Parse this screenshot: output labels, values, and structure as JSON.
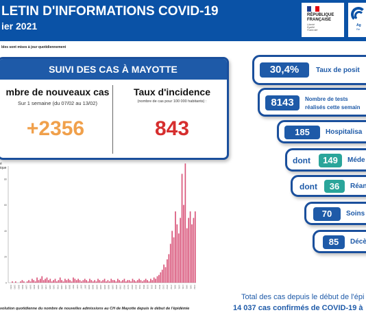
{
  "header": {
    "title": "LETIN D'INFORMATIONS COVID-19",
    "subtitle": "ier 2021",
    "logo_rf": [
      "RÉPUBLIQUE",
      "FRANÇAISE"
    ],
    "logo_motto": [
      "Liberté",
      "Égalité",
      "Fraternité"
    ],
    "logo2_lines": [
      "Ag",
      "Ré"
    ],
    "note": "bles sont mises à jour quotidiennement"
  },
  "suivi": {
    "title": "SUIVI DES CAS À MAYOTTE",
    "new_cases_title": "mbre de nouveaux cas",
    "new_cases_period": "Sur 1 semaine (du 07/02 au 13/02)",
    "new_cases_value": "+2356",
    "incidence_title": "Taux d'incidence",
    "incidence_sub": "(nombre de cas pour 100 000 habitants) :",
    "incidence_value": "843"
  },
  "indicators": {
    "positivity_value": "30,4%",
    "positivity_label": "Taux de posit",
    "tests_value": "8143",
    "tests_label1": "Nombre de tests",
    "tests_label2": "réalisés cette semain",
    "hosp_value": "185",
    "hosp_label": "Hospitalisa",
    "dont": "dont",
    "med_value": "149",
    "med_label": "Méde",
    "rea_value": "36",
    "rea_label": "Réani",
    "soins_value": "70",
    "soins_label": "Soins a",
    "deces_value": "85",
    "deces_label": "Décè"
  },
  "totals": {
    "line1": "Total des cas depuis le début de l'épi",
    "line2": "14 037 cas confirmés de COVID-19 à"
  },
  "chart_caption": "volution quotidienne du nombre de nouvelles admissions au CH de Mayotte depuis le début de l'épidémie",
  "colors": {
    "header": "#0a52a6",
    "accent": "#1e5aa8",
    "new_cases": "#f0a04b",
    "incidence": "#d62e2e",
    "bars": "#d9557a",
    "teal": "#2aa59a"
  },
  "chart_data": {
    "type": "bar",
    "title": "",
    "ylabel_fragment": [
      "é",
      "ique"
    ],
    "ylim": [
      0,
      90
    ],
    "values": [
      0,
      0,
      1,
      0,
      1,
      0,
      0,
      1,
      2,
      1,
      0,
      1,
      2,
      1,
      3,
      2,
      1,
      4,
      2,
      3,
      5,
      2,
      3,
      4,
      2,
      3,
      1,
      2,
      3,
      1,
      2,
      4,
      2,
      1,
      3,
      2,
      3,
      2,
      1,
      4,
      3,
      2,
      3,
      2,
      1,
      2,
      3,
      2,
      1,
      3,
      2,
      1,
      2,
      1,
      3,
      2,
      1,
      2,
      3,
      1,
      2,
      1,
      3,
      2,
      2,
      1,
      3,
      2,
      1,
      2,
      3,
      1,
      2,
      2,
      1,
      3,
      2,
      1,
      2,
      3,
      2,
      1,
      2,
      3,
      2,
      1,
      3,
      2,
      4,
      3,
      5,
      6,
      8,
      10,
      14,
      12,
      18,
      22,
      30,
      40,
      35,
      55,
      45,
      38,
      50,
      84,
      60,
      92,
      42,
      50,
      55,
      45,
      50,
      55
    ],
    "x_tick_labels": [
      "15/03",
      "22/03",
      "29/03",
      "05/04",
      "12/04",
      "19/04",
      "26/04",
      "03/05",
      "10/05",
      "17/05",
      "24/05",
      "31/05",
      "07/06",
      "14/06",
      "21/06",
      "28/06",
      "05/07",
      "12/07",
      "19/07",
      "26/07",
      "02/08",
      "09/08",
      "16/08",
      "23/08",
      "30/08",
      "06/09",
      "13/09",
      "20/09",
      "27/09",
      "04/10",
      "11/10",
      "18/10",
      "25/10",
      "01/11",
      "08/11",
      "15/11",
      "22/11",
      "29/11",
      "06/12",
      "13/12",
      "20/12",
      "27/12",
      "03/01",
      "10/01",
      "17/01",
      "24/01",
      "31/01",
      "07/02"
    ],
    "y_ticks": [
      0,
      20,
      40,
      60,
      80
    ]
  }
}
